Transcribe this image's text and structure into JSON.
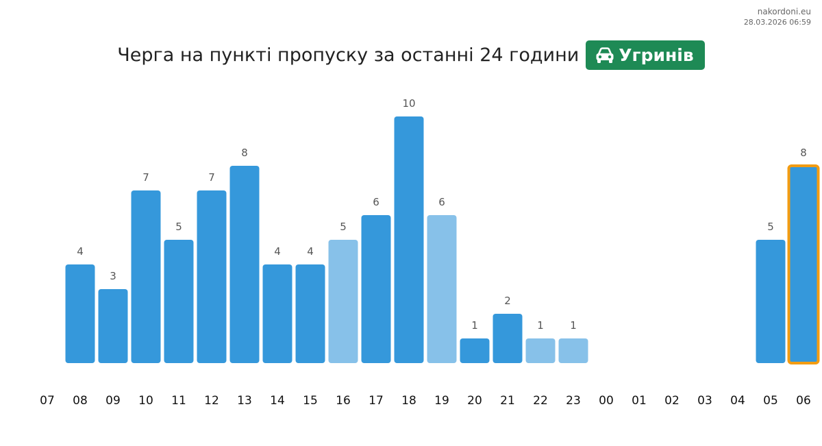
{
  "site": "nakordoni.eu",
  "timestamp": "28.03.2026 06:59",
  "title": "Черга на пункті пропуску за останні 24 години",
  "badge": {
    "label": "Угринів",
    "icon": "car-icon",
    "color": "#1e8a55"
  },
  "colors": {
    "bar": "#3598db",
    "bar_light": "#87c1e9",
    "highlight": "#f39c12"
  },
  "chart_data": {
    "type": "bar",
    "title": "Черга на пункті пропуску за останні 24 години",
    "categories": [
      "07",
      "08",
      "09",
      "10",
      "11",
      "12",
      "13",
      "14",
      "15",
      "16",
      "17",
      "18",
      "19",
      "20",
      "21",
      "22",
      "23",
      "00",
      "01",
      "02",
      "03",
      "04",
      "05",
      "06"
    ],
    "values": [
      null,
      4,
      3,
      7,
      5,
      7,
      8,
      4,
      4,
      5,
      6,
      10,
      6,
      1,
      2,
      1,
      1,
      null,
      null,
      null,
      null,
      null,
      5,
      8
    ],
    "light": [
      false,
      false,
      false,
      false,
      false,
      false,
      false,
      false,
      false,
      true,
      false,
      false,
      true,
      false,
      false,
      true,
      true,
      false,
      false,
      false,
      false,
      false,
      false,
      false
    ],
    "highlight_index": 23,
    "ylim": [
      0,
      10
    ],
    "grid": false,
    "legend": "none"
  }
}
